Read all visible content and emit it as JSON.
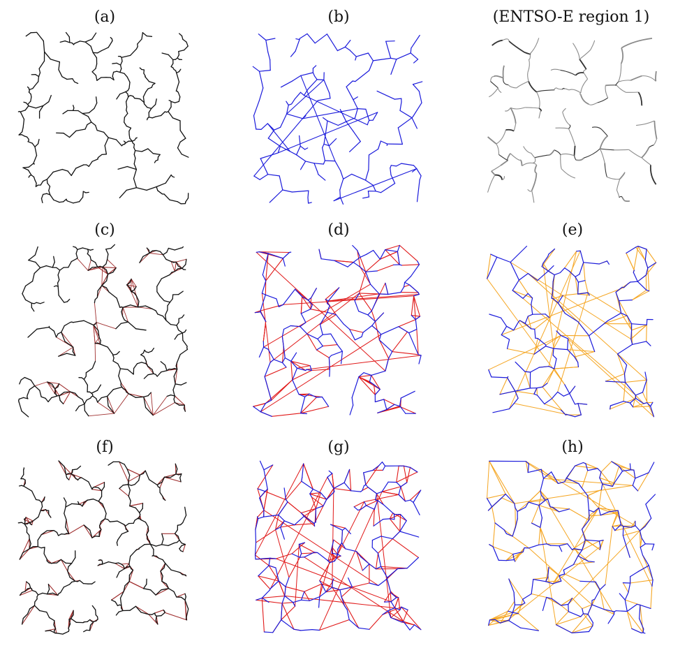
{
  "panels": [
    {
      "id": "a",
      "label": "(a)",
      "tree": "black",
      "extra": "none"
    },
    {
      "id": "b",
      "label": "(b)",
      "tree": "blue",
      "extra": "longlinks"
    },
    {
      "id": "entso",
      "label": "(ENTSO-E region 1)",
      "tree": "grey",
      "extra": "none"
    },
    {
      "id": "c",
      "label": "(c)",
      "tree": "black",
      "extra": "local-red"
    },
    {
      "id": "d",
      "label": "(d)",
      "tree": "blue",
      "extra": "red-mesh"
    },
    {
      "id": "e",
      "label": "(e)",
      "tree": "blue",
      "extra": "orange-mesh"
    },
    {
      "id": "f",
      "label": "(f)",
      "tree": "black",
      "extra": "red-grid"
    },
    {
      "id": "g",
      "label": "(g)",
      "tree": "blue",
      "extra": "red-mesh-dense"
    },
    {
      "id": "h",
      "label": "(h)",
      "tree": "blue",
      "extra": "orange-mesh-dense"
    }
  ],
  "colors": {
    "black": "#111111",
    "blue": "#1a1adb",
    "red": "#e01818",
    "brown": "#a03030",
    "orange": "#f5a623",
    "grey": "#555555"
  }
}
